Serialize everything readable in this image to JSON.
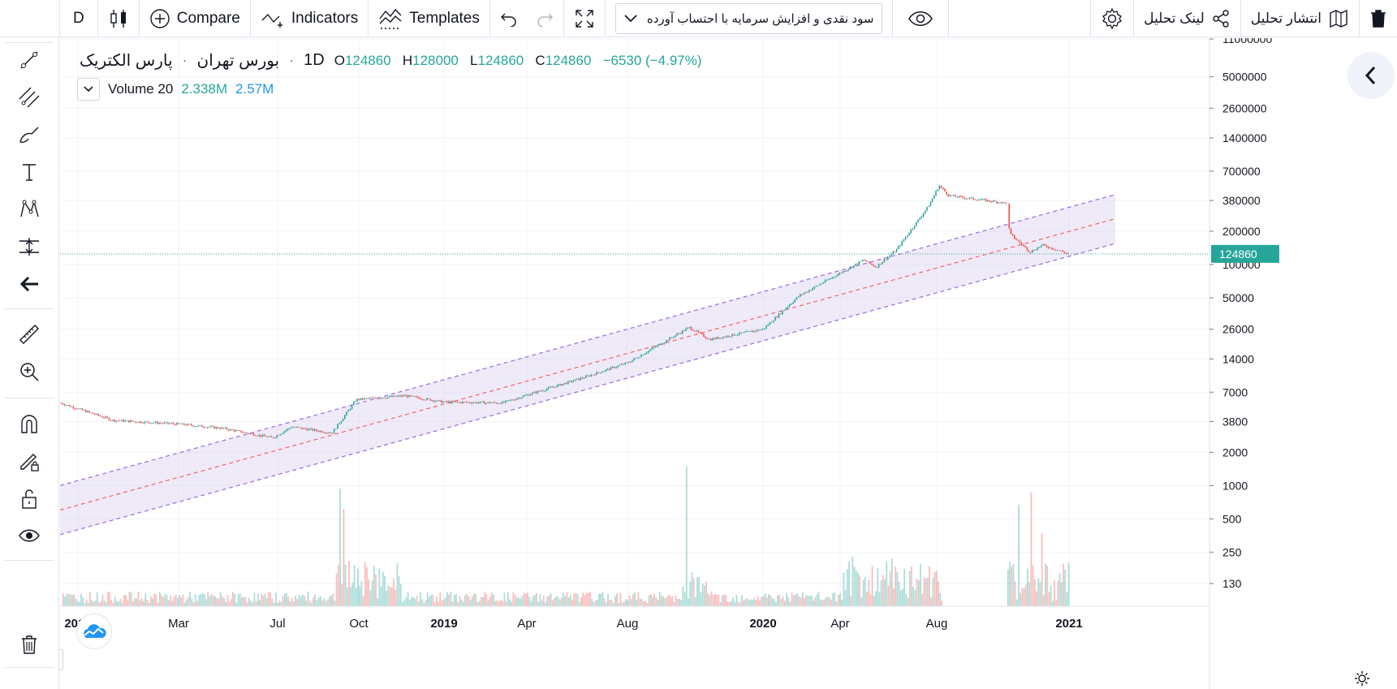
{
  "toolbar": {
    "interval": "D",
    "compare_label": "Compare",
    "indicators_label": "Indicators",
    "templates_label": "Templates",
    "study_dropdown": "سود نقدی و افزایش سرمایه با احتساب آورده",
    "publish_label": "انتشار تحلیل",
    "share_label": "لینک تحلیل"
  },
  "legend": {
    "symbol": "پارس الکتریک",
    "exchange": "بورس تهران",
    "sep1": "·",
    "interval": "1D",
    "sep2": "·",
    "o_key": "O",
    "o_val": "124860",
    "h_key": "H",
    "h_val": "128000",
    "l_key": "L",
    "l_val": "124860",
    "c_key": "C",
    "c_val": "124860",
    "change": "−6530 (−4.97%)"
  },
  "volume_legend": {
    "name": "Volume 20",
    "value": "2.338M",
    "ma_value": "2.57M"
  },
  "colors": {
    "up": "#26a69a",
    "down": "#ef5350",
    "channel_fill": "#d1c4e9",
    "channel_line": "#9c6ade",
    "median_line": "#f06666",
    "price_label_bg": "#26a69a",
    "ma_color": "#2196f3"
  },
  "chart_data": {
    "type": "candlestick",
    "yscale": "log",
    "price_axis_ticks": [
      11000000,
      5000000,
      2600000,
      1400000,
      700000,
      380000,
      200000,
      100000,
      50000,
      26000,
      14000,
      7000,
      3800,
      2000,
      1000,
      500,
      250,
      130
    ],
    "current_price_label": "124860",
    "time_axis_ticks": [
      "2017",
      "Mar",
      "Jul",
      "Oct",
      "2019",
      "Apr",
      "Aug",
      "2020",
      "Apr",
      "Aug",
      "2021"
    ],
    "price_path": [
      {
        "t": "2017",
        "price": 5600
      },
      {
        "t": "Feb",
        "price": 3900
      },
      {
        "t": "Mar",
        "price": 3600
      },
      {
        "t": "May",
        "price": 3300
      },
      {
        "t": "Jul",
        "price": 2700
      },
      {
        "t": "Jul",
        "price": 3400
      },
      {
        "t": "Sep",
        "price": 3000
      },
      {
        "t": "Oct",
        "price": 6000
      },
      {
        "t": "Nov",
        "price": 6500
      },
      {
        "t": "2019",
        "price": 5700
      },
      {
        "t": "Mar",
        "price": 5600
      },
      {
        "t": "Apr",
        "price": 6600
      },
      {
        "t": "Jun",
        "price": 9500
      },
      {
        "t": "Aug",
        "price": 13000
      },
      {
        "t": "Sep",
        "price": 27000
      },
      {
        "t": "Oct",
        "price": 21000
      },
      {
        "t": "2020",
        "price": 26000
      },
      {
        "t": "Mar",
        "price": 52000
      },
      {
        "t": "Apr",
        "price": 110000
      },
      {
        "t": "May",
        "price": 95000
      },
      {
        "t": "Jun",
        "price": 135000
      },
      {
        "t": "Jul",
        "price": 340000
      },
      {
        "t": "Aug",
        "price": 520000
      },
      {
        "t": "Aug",
        "price": 420000
      },
      {
        "t": "Oct",
        "price": 360000
      },
      {
        "t": "Nov",
        "price": 190000
      },
      {
        "t": "Nov",
        "price": 130000
      },
      {
        "t": "Dec",
        "price": 150000
      },
      {
        "t": "2021",
        "price": 124860
      }
    ],
    "volume": {
      "max_tick": "1000",
      "spikes": [
        {
          "t": "Oct",
          "level": 0.9
        },
        {
          "t": "Sep",
          "level": 1.0
        },
        {
          "t": "Nov",
          "level": 0.95
        }
      ]
    },
    "channel": {
      "upper": [
        {
          "t": "2017",
          "price": 1000
        },
        {
          "t": "2021",
          "price": 430000
        }
      ],
      "median": [
        {
          "t": "2017",
          "price": 600
        },
        {
          "t": "2021",
          "price": 260000
        }
      ],
      "lower": [
        {
          "t": "2017",
          "price": 360
        },
        {
          "t": "2021",
          "price": 155000
        }
      ]
    }
  }
}
